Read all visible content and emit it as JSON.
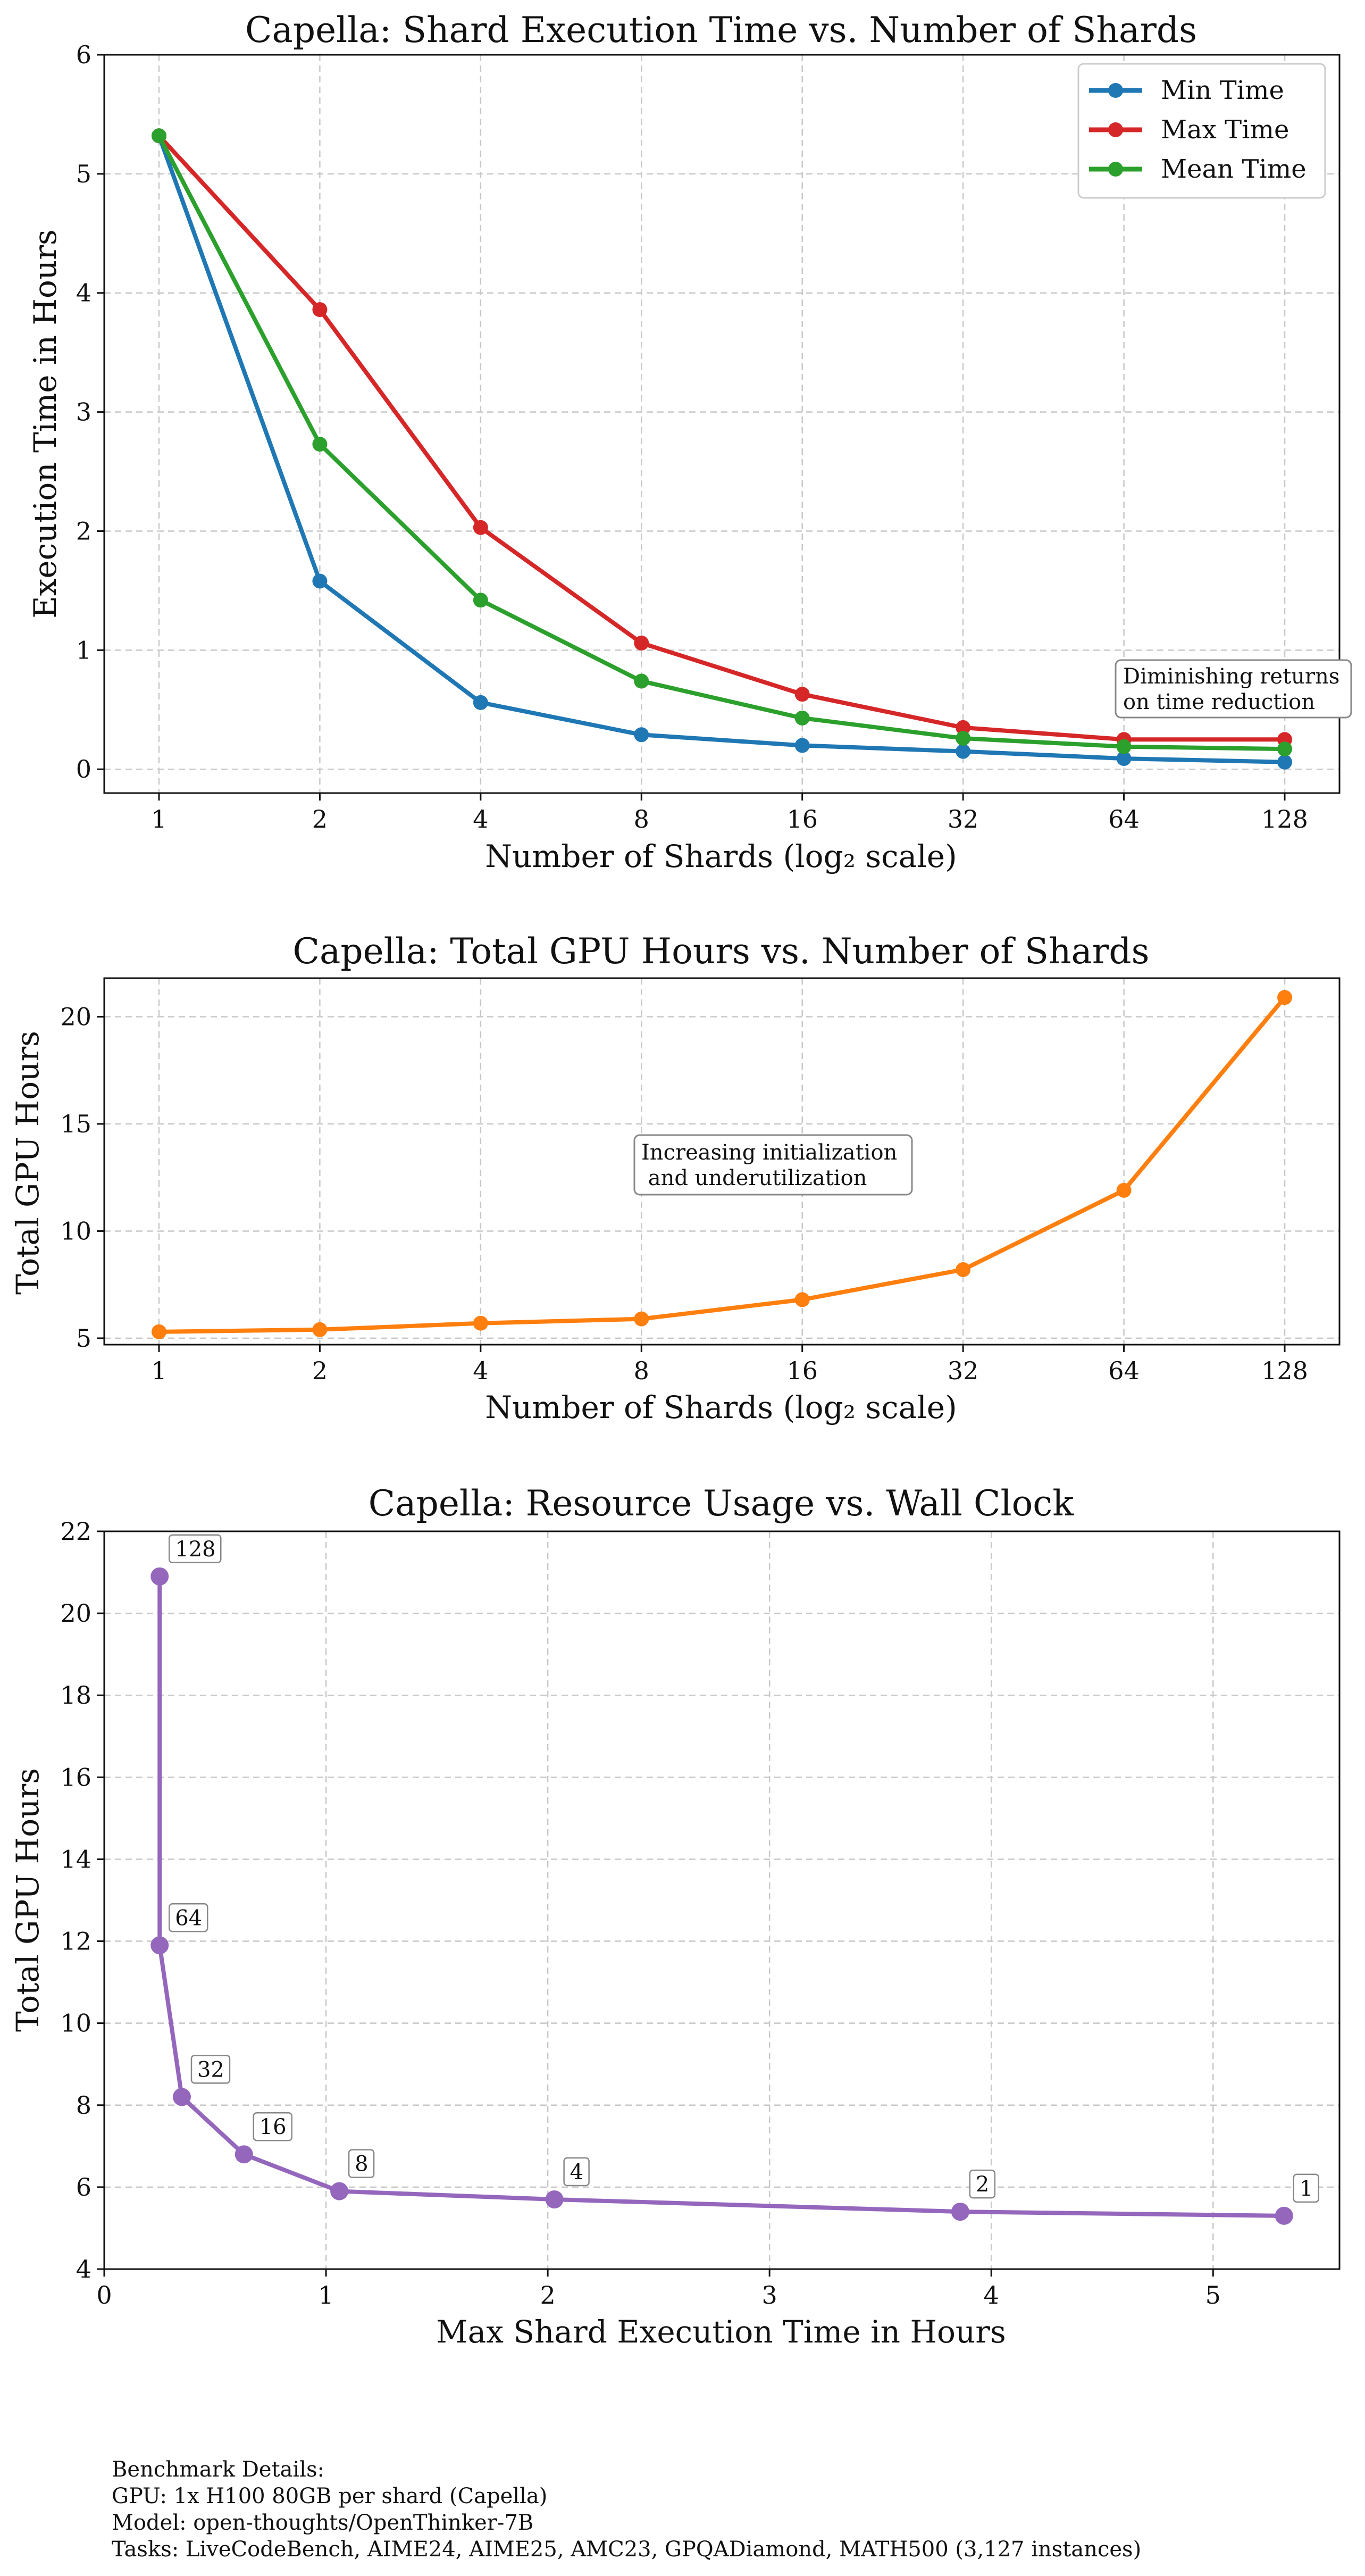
{
  "colors": {
    "min": "#1f77b4",
    "max": "#d62728",
    "mean": "#2ca02c",
    "gpu": "#ff7f0e",
    "resource": "#9467bd",
    "grid": "#c8c8c8"
  },
  "chart_data": [
    {
      "type": "line",
      "title": "Capella: Shard Execution Time vs. Number of Shards",
      "xlabel": "Number of Shards (log₂ scale)",
      "ylabel": "Execution Time in Hours",
      "x_scale": "log2",
      "x": [
        1,
        2,
        4,
        8,
        16,
        32,
        64,
        128
      ],
      "x_tick_labels": [
        "1",
        "2",
        "4",
        "8",
        "16",
        "32",
        "64",
        "128"
      ],
      "ylim": [
        -0.2,
        6
      ],
      "y_ticks": [
        0,
        1,
        2,
        3,
        4,
        5,
        6
      ],
      "grid": true,
      "legend": "top-right",
      "series": [
        {
          "name": "Min Time",
          "values": [
            5.32,
            1.58,
            0.56,
            0.29,
            0.2,
            0.15,
            0.09,
            0.06
          ]
        },
        {
          "name": "Max Time",
          "values": [
            5.32,
            3.86,
            2.03,
            1.06,
            0.63,
            0.35,
            0.25,
            0.25
          ]
        },
        {
          "name": "Mean Time",
          "values": [
            5.32,
            2.73,
            1.42,
            0.74,
            0.43,
            0.26,
            0.19,
            0.17
          ]
        }
      ],
      "annotation": [
        "Diminishing returns",
        "on time reduction"
      ]
    },
    {
      "type": "line",
      "title": "Capella: Total GPU Hours vs. Number of Shards",
      "xlabel": "Number of Shards (log₂ scale)",
      "ylabel": "Total GPU Hours",
      "x_scale": "log2",
      "x": [
        1,
        2,
        4,
        8,
        16,
        32,
        64,
        128
      ],
      "x_tick_labels": [
        "1",
        "2",
        "4",
        "8",
        "16",
        "32",
        "64",
        "128"
      ],
      "ylim": [
        4.7,
        21.8
      ],
      "y_ticks": [
        5,
        10,
        15,
        20
      ],
      "grid": true,
      "series": [
        {
          "values": [
            5.3,
            5.4,
            5.7,
            5.9,
            6.8,
            8.2,
            11.9,
            20.9
          ]
        }
      ],
      "annotation": [
        "Increasing initialization",
        " and underutilization"
      ]
    },
    {
      "type": "line",
      "title": "Capella: Resource Usage vs. Wall Clock",
      "xlabel": "Max Shard Execution Time in Hours",
      "ylabel": "Total GPU Hours",
      "xlim": [
        0,
        5.57
      ],
      "ylim": [
        4,
        22
      ],
      "x_ticks": [
        0,
        1,
        2,
        3,
        4,
        5
      ],
      "y_ticks": [
        4,
        6,
        8,
        10,
        12,
        14,
        16,
        18,
        20,
        22
      ],
      "grid": true,
      "points": [
        {
          "x": 5.32,
          "y": 5.3,
          "label": "1"
        },
        {
          "x": 3.86,
          "y": 5.4,
          "label": "2"
        },
        {
          "x": 2.03,
          "y": 5.7,
          "label": "4"
        },
        {
          "x": 1.06,
          "y": 5.9,
          "label": "8"
        },
        {
          "x": 0.63,
          "y": 6.8,
          "label": "16"
        },
        {
          "x": 0.35,
          "y": 8.2,
          "label": "32"
        },
        {
          "x": 0.25,
          "y": 11.9,
          "label": "64"
        },
        {
          "x": 0.25,
          "y": 20.9,
          "label": "128"
        }
      ]
    }
  ],
  "footer": {
    "line1": "Benchmark Details:",
    "line2": "GPU: 1x H100 80GB per shard (Capella)",
    "line3": "Model: open-thoughts/OpenThinker-7B",
    "line4": "Tasks: LiveCodeBench, AIME24, AIME25, AMC23, GPQADiamond, MATH500 (3,127 instances)"
  }
}
